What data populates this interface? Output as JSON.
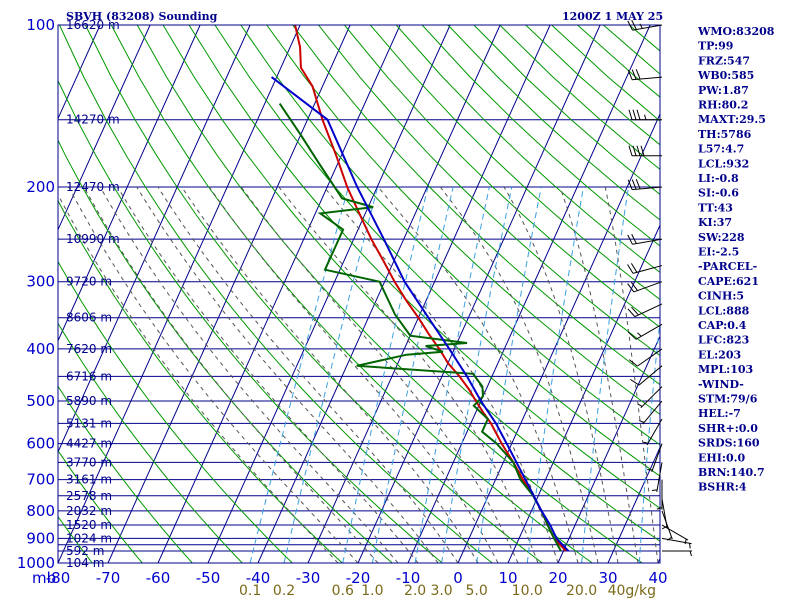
{
  "header": {
    "title": "SBVH (83208) Sounding",
    "datetime": "1200Z  1 MAY 25"
  },
  "chart_data": {
    "type": "line",
    "title": "SBVH (83208) Sounding",
    "xlabel": "",
    "ylabel": "mb",
    "xlim": [
      -80,
      40
    ],
    "ylim": [
      1000,
      100
    ],
    "x_ticks": [
      "-80",
      "-70",
      "-60",
      "-50",
      "-40",
      "-30",
      "-20",
      "-10",
      "0",
      "10",
      "20",
      "30",
      "40"
    ],
    "p_ticks": [
      {
        "p": 100,
        "label": "100"
      },
      {
        "p": 200,
        "label": "200"
      },
      {
        "p": 300,
        "label": "300"
      },
      {
        "p": 400,
        "label": "400"
      },
      {
        "p": 500,
        "label": "500"
      },
      {
        "p": 600,
        "label": "600"
      },
      {
        "p": 700,
        "label": "700"
      },
      {
        "p": 800,
        "label": "800"
      },
      {
        "p": 900,
        "label": "900"
      },
      {
        "p": 1000,
        "label": "1000"
      }
    ],
    "p_grid": [
      100,
      150,
      200,
      250,
      300,
      350,
      400,
      450,
      500,
      550,
      600,
      650,
      700,
      750,
      800,
      850,
      900,
      925,
      950,
      1000
    ],
    "height_labels": [
      {
        "p": 100,
        "label": "16620 m"
      },
      {
        "p": 150,
        "label": "14270 m"
      },
      {
        "p": 200,
        "label": "12470 m"
      },
      {
        "p": 250,
        "label": "10990 m"
      },
      {
        "p": 300,
        "label": "9720 m"
      },
      {
        "p": 350,
        "label": "8606 m"
      },
      {
        "p": 400,
        "label": "7620 m"
      },
      {
        "p": 450,
        "label": "6716 m"
      },
      {
        "p": 500,
        "label": "5890 m"
      },
      {
        "p": 550,
        "label": "5131 m"
      },
      {
        "p": 600,
        "label": "4427 m"
      },
      {
        "p": 650,
        "label": "3770 m"
      },
      {
        "p": 700,
        "label": "3161 m"
      },
      {
        "p": 750,
        "label": "2578 m"
      },
      {
        "p": 800,
        "label": "2032 m"
      },
      {
        "p": 850,
        "label": "1520 m"
      },
      {
        "p": 900,
        "label": "1024 m"
      },
      {
        "p": 950,
        "label": "592 m"
      },
      {
        "p": 1000,
        "label": "104 m"
      }
    ],
    "mixing_ratio_labels": [
      {
        "w": 0.1,
        "label": "0.1"
      },
      {
        "w": 0.2,
        "label": "0.2"
      },
      {
        "w": 0.6,
        "label": "0.6"
      },
      {
        "w": 1.0,
        "label": "1.0"
      },
      {
        "w": 2.0,
        "label": "2.0"
      },
      {
        "w": 3.0,
        "label": "3.0"
      },
      {
        "w": 5.0,
        "label": "5.0"
      },
      {
        "w": 10.0,
        "label": "10.0"
      },
      {
        "w": 20.0,
        "label": "20.0"
      },
      {
        "w": 40.0,
        "label": "40g/kg"
      }
    ],
    "series": [
      {
        "color": "#cc0000",
        "points": [
          {
            "p": 100,
            "t": -81
          },
          {
            "p": 110,
            "t": -78
          },
          {
            "p": 120,
            "t": -76
          },
          {
            "p": 130,
            "t": -72
          },
          {
            "p": 150,
            "t": -67
          },
          {
            "p": 175,
            "t": -61
          },
          {
            "p": 200,
            "t": -56
          },
          {
            "p": 225,
            "t": -51
          },
          {
            "p": 250,
            "t": -46.5
          },
          {
            "p": 275,
            "t": -42
          },
          {
            "p": 300,
            "t": -38
          },
          {
            "p": 325,
            "t": -34
          },
          {
            "p": 350,
            "t": -30
          },
          {
            "p": 375,
            "t": -26.5
          },
          {
            "p": 400,
            "t": -23
          },
          {
            "p": 425,
            "t": -20
          },
          {
            "p": 450,
            "t": -16.5
          },
          {
            "p": 475,
            "t": -13.5
          },
          {
            "p": 500,
            "t": -11
          },
          {
            "p": 525,
            "t": -8.5
          },
          {
            "p": 550,
            "t": -6
          },
          {
            "p": 600,
            "t": -2
          },
          {
            "p": 650,
            "t": 2
          },
          {
            "p": 700,
            "t": 5.5
          },
          {
            "p": 750,
            "t": 9
          },
          {
            "p": 800,
            "t": 12
          },
          {
            "p": 850,
            "t": 14.5
          },
          {
            "p": 900,
            "t": 17
          },
          {
            "p": 950,
            "t": 20.5
          }
        ]
      },
      {
        "color": "#006400",
        "points": [
          {
            "p": 140,
            "t": -77
          },
          {
            "p": 160,
            "t": -70
          },
          {
            "p": 180,
            "t": -64
          },
          {
            "p": 210,
            "t": -56
          },
          {
            "p": 218,
            "t": -49
          },
          {
            "p": 224,
            "t": -59
          },
          {
            "p": 240,
            "t": -53
          },
          {
            "p": 285,
            "t": -53
          },
          {
            "p": 300,
            "t": -41
          },
          {
            "p": 345,
            "t": -35
          },
          {
            "p": 378,
            "t": -30
          },
          {
            "p": 390,
            "t": -18
          },
          {
            "p": 395,
            "t": -26
          },
          {
            "p": 405,
            "t": -22
          },
          {
            "p": 410,
            "t": -29
          },
          {
            "p": 430,
            "t": -38
          },
          {
            "p": 445,
            "t": -14
          },
          {
            "p": 470,
            "t": -11
          },
          {
            "p": 490,
            "t": -10
          },
          {
            "p": 510,
            "t": -11
          },
          {
            "p": 540,
            "t": -7
          },
          {
            "p": 570,
            "t": -7
          },
          {
            "p": 600,
            "t": -3
          },
          {
            "p": 650,
            "t": 2
          },
          {
            "p": 700,
            "t": 5
          },
          {
            "p": 750,
            "t": 9
          },
          {
            "p": 800,
            "t": 12
          },
          {
            "p": 850,
            "t": 14.5
          },
          {
            "p": 900,
            "t": 17
          },
          {
            "p": 950,
            "t": 19.5
          }
        ]
      },
      {
        "color": "#0000cc",
        "points": [
          {
            "p": 125,
            "t": -81
          },
          {
            "p": 150,
            "t": -66
          },
          {
            "p": 200,
            "t": -54
          },
          {
            "p": 250,
            "t": -44
          },
          {
            "p": 300,
            "t": -36
          },
          {
            "p": 350,
            "t": -28
          },
          {
            "p": 400,
            "t": -21
          },
          {
            "p": 450,
            "t": -15
          },
          {
            "p": 500,
            "t": -10
          },
          {
            "p": 550,
            "t": -5
          },
          {
            "p": 600,
            "t": -1
          },
          {
            "p": 700,
            "t": 6
          },
          {
            "p": 800,
            "t": 12
          },
          {
            "p": 850,
            "t": 15
          },
          {
            "p": 900,
            "t": 17.5
          },
          {
            "p": 950,
            "t": 21
          }
        ]
      }
    ],
    "wind_barbs": [
      {
        "p": 100,
        "dir": 260,
        "spd": 25
      },
      {
        "p": 125,
        "dir": 265,
        "spd": 30
      },
      {
        "p": 150,
        "dir": 270,
        "spd": 35
      },
      {
        "p": 175,
        "dir": 270,
        "spd": 40
      },
      {
        "p": 200,
        "dir": 265,
        "spd": 30
      },
      {
        "p": 250,
        "dir": 260,
        "spd": 20
      },
      {
        "p": 280,
        "dir": 255,
        "spd": 20
      },
      {
        "p": 300,
        "dir": 250,
        "spd": 20
      },
      {
        "p": 330,
        "dir": 245,
        "spd": 20
      },
      {
        "p": 360,
        "dir": 240,
        "spd": 15
      },
      {
        "p": 400,
        "dir": 235,
        "spd": 10
      },
      {
        "p": 430,
        "dir": 230,
        "spd": 10
      },
      {
        "p": 470,
        "dir": 225,
        "spd": 5
      },
      {
        "p": 500,
        "dir": 220,
        "spd": 5
      },
      {
        "p": 540,
        "dir": 210,
        "spd": 5
      },
      {
        "p": 600,
        "dir": 200,
        "spd": 5
      },
      {
        "p": 650,
        "dir": 190,
        "spd": 5
      },
      {
        "p": 700,
        "dir": 180,
        "spd": 5
      },
      {
        "p": 760,
        "dir": 170,
        "spd": 5
      },
      {
        "p": 800,
        "dir": 160,
        "spd": 5
      },
      {
        "p": 850,
        "dir": 120,
        "spd": 5
      },
      {
        "p": 900,
        "dir": 100,
        "spd": 5
      },
      {
        "p": 950,
        "dir": 90,
        "spd": 5
      }
    ],
    "colors": {
      "isobar": "#00008b",
      "isotherm": "#00008b",
      "dry_adiabat": "#009900",
      "moist_adiabat": "#555555",
      "mixing_ratio": "#3aa0e0",
      "temperature": "#cc0000",
      "dewpoint": "#006400",
      "parcel": "#0000cc"
    }
  },
  "indices": [
    "WMO:83208",
    "TP:99",
    "FRZ:547",
    "WB0:585",
    "PW:1.87",
    "RH:80.2",
    "MAXT:29.5",
    "TH:5786",
    "L57:4.7",
    "LCL:932",
    "LI:-0.8",
    "SI:-0.6",
    "TT:43",
    "KI:37",
    "SW:228",
    "EI:-2.5",
    "-PARCEL-",
    "CAPE:621",
    "CINH:5",
    "LCL:888",
    "CAP:0.4",
    "LFC:823",
    "EL:203",
    "MPL:103",
    "-WIND-",
    "STM:79/6",
    "HEL:-7",
    "SHR+:0.0",
    "SRDS:160",
    "EHI:0.0",
    "BRN:140.7",
    "BSHR:4"
  ]
}
